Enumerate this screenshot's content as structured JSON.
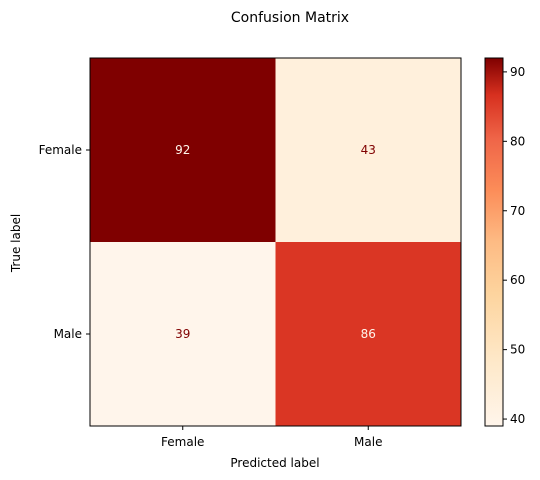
{
  "chart_data": {
    "type": "heatmap",
    "title": "Confusion Matrix",
    "xlabel": "Predicted label",
    "ylabel": "True label",
    "x_categories": [
      "Female",
      "Male"
    ],
    "y_categories": [
      "Female",
      "Male"
    ],
    "values": [
      [
        92,
        43
      ],
      [
        39,
        86
      ]
    ],
    "colormap": "OrRd",
    "colorbar": {
      "range": [
        39,
        92
      ],
      "ticks": [
        "40",
        "50",
        "60",
        "70",
        "80",
        "90"
      ]
    },
    "text_colors": {
      "on_dark": "#fff5eb",
      "on_light": "#800000"
    }
  }
}
